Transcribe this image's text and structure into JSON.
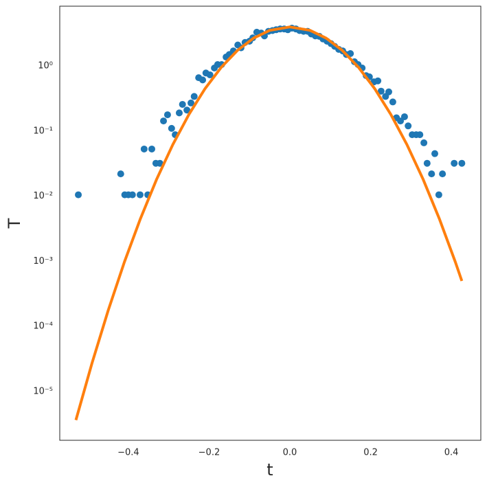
{
  "chart_data": {
    "type": "scatter",
    "xlabel": "t",
    "ylabel": "T",
    "xlim": [
      -0.57,
      0.473
    ],
    "ylim": [
      1.78e-06,
      8.28
    ],
    "yscale": "log",
    "grid": false,
    "xticks": [
      {
        "value": -0.4,
        "label": "−0.4"
      },
      {
        "value": -0.2,
        "label": "−0.2"
      },
      {
        "value": 0,
        "label": "0.0"
      },
      0.2,
      0.4
    ],
    "yticks": [
      {
        "value": 1e-05,
        "label": "10⁻⁵"
      },
      {
        "value": 0.0001,
        "label": "10⁻⁴"
      },
      {
        "value": 0.001,
        "label": "10⁻³"
      },
      {
        "value": 0.01,
        "label": "10⁻²"
      },
      {
        "value": 0.1,
        "label": "10⁻¹"
      },
      {
        "value": 1,
        "label": "10⁰"
      }
    ],
    "series": [
      {
        "type": "scatter",
        "color": "#1f77b4",
        "x": [
          -0.524,
          -0.419,
          -0.409,
          -0.4,
          -0.39,
          -0.371,
          -0.361,
          -0.352,
          -0.342,
          -0.332,
          -0.322,
          -0.313,
          -0.303,
          -0.293,
          -0.284,
          -0.274,
          -0.266,
          -0.255,
          -0.245,
          -0.237,
          -0.226,
          -0.216,
          -0.208,
          -0.198,
          -0.187,
          -0.179,
          -0.169,
          -0.158,
          -0.15,
          -0.14,
          -0.129,
          -0.121,
          -0.111,
          -0.1,
          -0.092,
          -0.082,
          -0.071,
          -0.063,
          -0.053,
          -0.043,
          -0.034,
          -0.024,
          -0.014,
          -0.005,
          0.005,
          0.015,
          0.024,
          0.034,
          0.044,
          0.053,
          0.063,
          0.073,
          0.082,
          0.092,
          0.102,
          0.111,
          0.121,
          0.131,
          0.14,
          0.15,
          0.16,
          0.169,
          0.179,
          0.189,
          0.197,
          0.208,
          0.218,
          0.226,
          0.237,
          0.245,
          0.255,
          0.264,
          0.274,
          0.284,
          0.293,
          0.303,
          0.313,
          0.322,
          0.332,
          0.34,
          0.351,
          0.359,
          0.369,
          0.378,
          0.407,
          0.426
        ],
        "values": [
          0.0105,
          0.022,
          0.0105,
          0.0105,
          0.0105,
          0.0105,
          0.053,
          0.0105,
          0.053,
          0.032,
          0.032,
          0.143,
          0.178,
          0.11,
          0.088,
          0.19,
          0.257,
          0.21,
          0.27,
          0.34,
          0.66,
          0.61,
          0.78,
          0.73,
          0.93,
          1.05,
          1.05,
          1.37,
          1.5,
          1.7,
          2.1,
          1.9,
          2.3,
          2.4,
          2.7,
          3.3,
          3.2,
          2.9,
          3.4,
          3.5,
          3.6,
          3.7,
          3.7,
          3.6,
          3.8,
          3.7,
          3.5,
          3.4,
          3.4,
          3.1,
          2.9,
          2.85,
          2.6,
          2.4,
          2.2,
          2.0,
          1.8,
          1.7,
          1.5,
          1.55,
          1.16,
          1.05,
          0.93,
          0.71,
          0.68,
          0.57,
          0.59,
          0.41,
          0.34,
          0.4,
          0.28,
          0.16,
          0.143,
          0.166,
          0.12,
          0.088,
          0.088,
          0.088,
          0.066,
          0.032,
          0.022,
          0.045,
          0.0105,
          0.022,
          0.032,
          0.032
        ]
      },
      {
        "type": "line",
        "color": "#ff7f0e",
        "x": [
          -0.53,
          -0.49,
          -0.45,
          -0.41,
          -0.37,
          -0.33,
          -0.29,
          -0.25,
          -0.21,
          -0.17,
          -0.13,
          -0.09,
          -0.05,
          0,
          0.05,
          0.09,
          0.13,
          0.17,
          0.21,
          0.25,
          0.29,
          0.33,
          0.37,
          0.41,
          0.426
        ],
        "values": [
          3.64e-06,
          2.74e-05,
          0.000176,
          0.00097,
          0.00454,
          0.0182,
          0.0619,
          0.18,
          0.449,
          0.953,
          1.73,
          2.67,
          3.52,
          3.98,
          3.52,
          2.67,
          1.73,
          0.953,
          0.449,
          0.18,
          0.0619,
          0.0182,
          0.00454,
          0.00097,
          0.000499
        ]
      }
    ]
  }
}
